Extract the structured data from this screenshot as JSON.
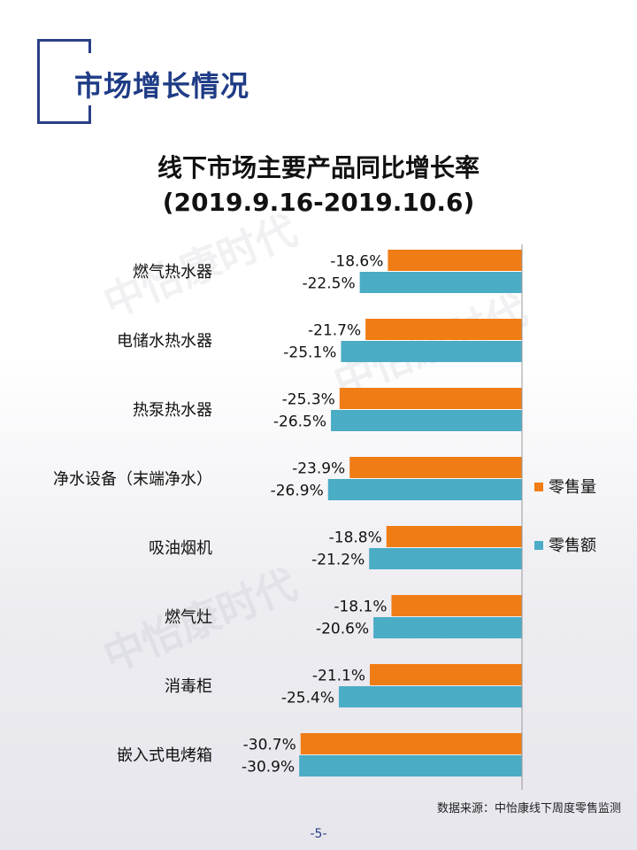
{
  "section": {
    "title": "市场增长情况"
  },
  "watermark": {
    "text": "中怡康时代"
  },
  "source": "数据来源：中怡康线下周度零售监测",
  "page_number": "-5-",
  "colors": {
    "brand": "#1f3c86",
    "volume": "#f07c15",
    "revenue": "#4bacc6"
  },
  "chart_data": {
    "type": "bar",
    "orientation": "horizontal",
    "title": "线下市场主要产品同比增长率",
    "subtitle": "(2019.9.16-2019.10.6)",
    "categories": [
      "燃气热水器",
      "电储水热水器",
      "热泵热水器",
      "净水设备（末端净水）",
      "吸油烟机",
      "燃气灶",
      "消毒柜",
      "嵌入式电烤箱"
    ],
    "series": [
      {
        "name": "零售量",
        "color": "#f07c15",
        "values": [
          -18.6,
          -21.7,
          -25.3,
          -23.9,
          -18.8,
          -18.1,
          -21.1,
          -30.7
        ],
        "labels": [
          "-18.6%",
          "-21.7%",
          "-25.3%",
          "-23.9%",
          "-18.8%",
          "-18.1%",
          "-21.1%",
          "-30.7%"
        ]
      },
      {
        "name": "零售额",
        "color": "#4bacc6",
        "values": [
          -22.5,
          -25.1,
          -26.5,
          -26.9,
          -21.2,
          -20.6,
          -25.4,
          -30.9
        ],
        "labels": [
          "-22.5%",
          "-25.1%",
          "-26.5%",
          "-26.9%",
          "-21.2%",
          "-20.6%",
          "-25.4%",
          "-30.9%"
        ]
      }
    ],
    "unit": "%",
    "xlim": [
      -31,
      0
    ],
    "grid": false,
    "legend_position": "right"
  }
}
